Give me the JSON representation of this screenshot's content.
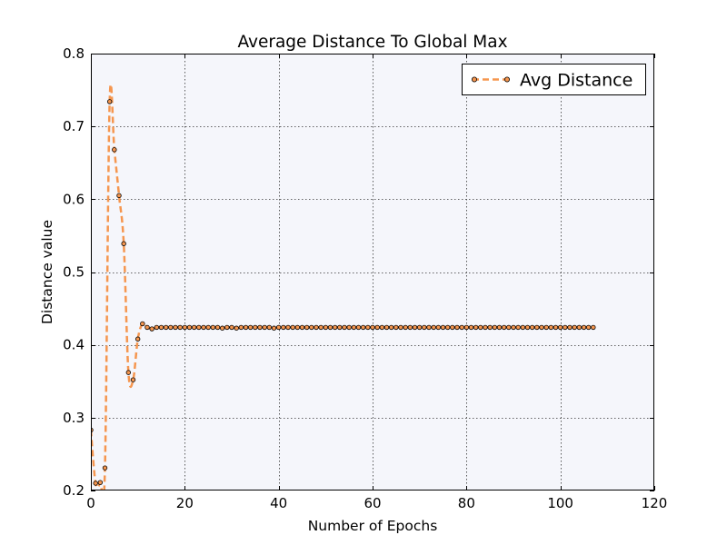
{
  "chart_data": {
    "type": "line",
    "title": "Average Distance To Global Max",
    "xlabel": "Number of Epochs",
    "ylabel": "Distance value",
    "xlim": [
      0,
      120
    ],
    "ylim": [
      0.2,
      0.8
    ],
    "xticks": [
      "0",
      "20",
      "40",
      "60",
      "80",
      "100",
      "120"
    ],
    "yticks": [
      "0.2",
      "0.3",
      "0.4",
      "0.5",
      "0.6",
      "0.7",
      "0.8"
    ],
    "grid": true,
    "legend_position": "top-right",
    "series": [
      {
        "name": "Avg Distance",
        "color": "#f5964f",
        "line_style": "dashed",
        "marker": "circle",
        "x": [
          0,
          1,
          2,
          3,
          4,
          5,
          6,
          7,
          8,
          9,
          10,
          11,
          12,
          13,
          14,
          15,
          16,
          17,
          18,
          19,
          20,
          21,
          22,
          23,
          24,
          25,
          26,
          27,
          28,
          29,
          30,
          31,
          32,
          33,
          34,
          35,
          36,
          37,
          38,
          39,
          40,
          41,
          42,
          43,
          44,
          45,
          46,
          47,
          48,
          49,
          50,
          51,
          52,
          53,
          54,
          55,
          56,
          57,
          58,
          59,
          60,
          61,
          62,
          63,
          64,
          65,
          66,
          67,
          68,
          69,
          70,
          71,
          72,
          73,
          74,
          75,
          76,
          77,
          78,
          79,
          80,
          81,
          82,
          83,
          84,
          85,
          86,
          87,
          88,
          89,
          90,
          91,
          92,
          93,
          94,
          95,
          96,
          97,
          98,
          99,
          100,
          101,
          102,
          103,
          104,
          105,
          106,
          107
        ],
        "y": [
          0.283,
          0.21,
          0.211,
          0.231,
          0.734,
          0.668,
          0.605,
          0.539,
          0.362,
          0.352,
          0.408,
          0.429,
          0.424,
          0.422,
          0.424,
          0.424,
          0.424,
          0.424,
          0.424,
          0.424,
          0.424,
          0.424,
          0.424,
          0.424,
          0.424,
          0.424,
          0.424,
          0.424,
          0.423,
          0.424,
          0.424,
          0.423,
          0.424,
          0.424,
          0.424,
          0.424,
          0.424,
          0.424,
          0.424,
          0.423,
          0.424,
          0.424,
          0.424,
          0.424,
          0.424,
          0.424,
          0.424,
          0.424,
          0.424,
          0.424,
          0.424,
          0.424,
          0.424,
          0.424,
          0.424,
          0.424,
          0.424,
          0.424,
          0.424,
          0.424,
          0.424,
          0.424,
          0.424,
          0.424,
          0.424,
          0.424,
          0.424,
          0.424,
          0.424,
          0.424,
          0.424,
          0.424,
          0.424,
          0.424,
          0.424,
          0.424,
          0.424,
          0.424,
          0.424,
          0.424,
          0.424,
          0.424,
          0.424,
          0.424,
          0.424,
          0.424,
          0.424,
          0.424,
          0.424,
          0.424,
          0.424,
          0.424,
          0.424,
          0.424,
          0.424,
          0.424,
          0.424,
          0.424,
          0.424,
          0.424,
          0.424,
          0.424,
          0.424,
          0.424,
          0.424,
          0.424,
          0.424,
          0.424
        ]
      }
    ]
  }
}
